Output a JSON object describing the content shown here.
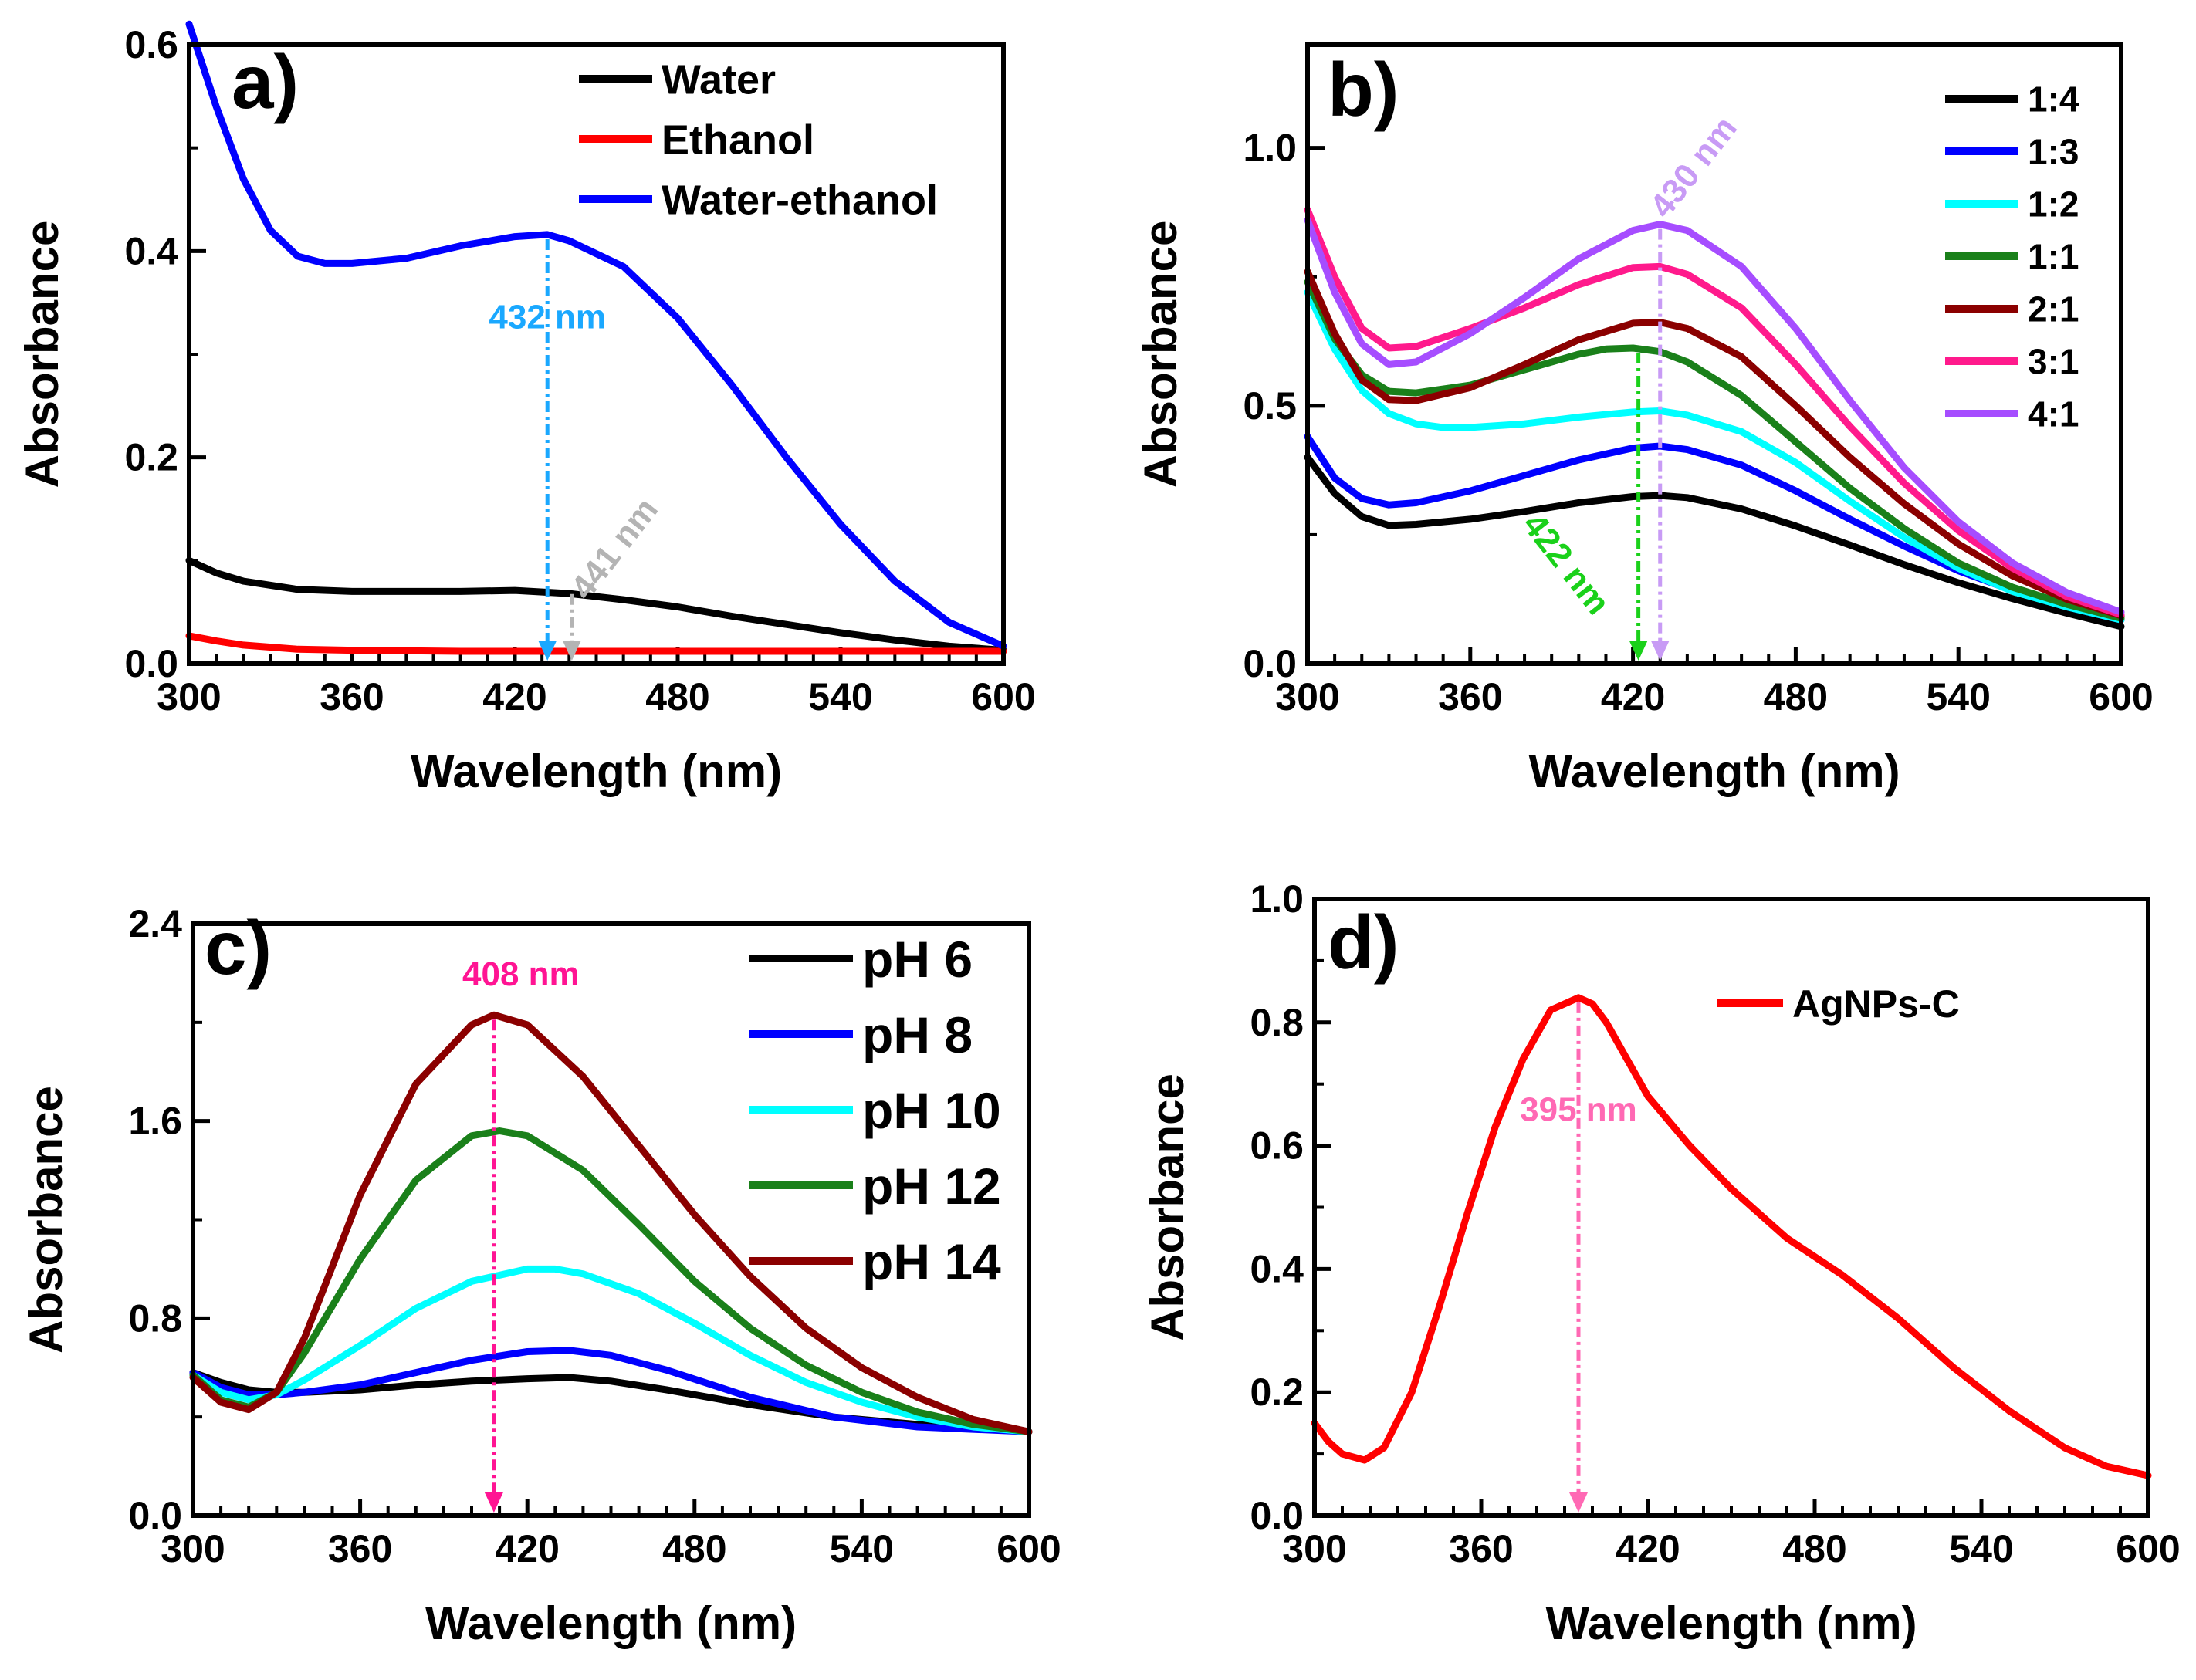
{
  "chart_data": [
    {
      "type": "line",
      "panel_label": "a)",
      "xlabel": "Wavelength (nm)",
      "ylabel": "Absorbance",
      "xlim": [
        300,
        600
      ],
      "ylim": [
        0,
        0.6
      ],
      "xticks": [
        "300",
        "360",
        "420",
        "480",
        "540",
        "600"
      ],
      "yticks": [
        "0.0",
        "0.2",
        "0.4",
        "0.6"
      ],
      "ytick_values": [
        0,
        0.2,
        0.4,
        0.6
      ],
      "legend_position": "top-right",
      "series": [
        {
          "name": "Water",
          "color": "#000000",
          "x": [
            300,
            310,
            320,
            340,
            360,
            380,
            400,
            420,
            440,
            460,
            480,
            500,
            520,
            540,
            560,
            580,
            600
          ],
          "values": [
            0.1,
            0.088,
            0.08,
            0.072,
            0.07,
            0.07,
            0.07,
            0.071,
            0.068,
            0.062,
            0.055,
            0.046,
            0.038,
            0.03,
            0.023,
            0.017,
            0.013
          ]
        },
        {
          "name": "Ethanol",
          "color": "#ff0000",
          "x": [
            300,
            310,
            320,
            340,
            360,
            400,
            440,
            480,
            520,
            560,
            600
          ],
          "values": [
            0.027,
            0.022,
            0.018,
            0.014,
            0.013,
            0.012,
            0.012,
            0.012,
            0.012,
            0.012,
            0.012
          ]
        },
        {
          "name": "Water-ethanol",
          "color": "#0000ff",
          "x": [
            300,
            305,
            310,
            320,
            330,
            340,
            350,
            360,
            380,
            400,
            420,
            432,
            440,
            460,
            480,
            500,
            520,
            540,
            560,
            580,
            600
          ],
          "values": [
            0.62,
            0.58,
            0.54,
            0.47,
            0.42,
            0.395,
            0.388,
            0.388,
            0.393,
            0.405,
            0.414,
            0.416,
            0.41,
            0.385,
            0.335,
            0.27,
            0.2,
            0.135,
            0.08,
            0.04,
            0.017
          ]
        }
      ],
      "annotations": [
        {
          "text": "432 nm",
          "x": 432,
          "y_from": 0.416,
          "color": "#1aa8ff",
          "rotated": false
        },
        {
          "text": "441 nm",
          "x": 441,
          "y_from": 0.072,
          "color": "#b4b4b4",
          "rotated": true
        }
      ]
    },
    {
      "type": "line",
      "panel_label": "b)",
      "xlabel": "Wavelength (nm)",
      "ylabel": "Absorbance",
      "xlim": [
        300,
        600
      ],
      "ylim": [
        0,
        1.2
      ],
      "xticks": [
        "300",
        "360",
        "420",
        "480",
        "540",
        "600"
      ],
      "yticks": [
        "0.0",
        "0.5",
        "1.0"
      ],
      "ytick_values": [
        0,
        0.5,
        1.0
      ],
      "legend_position": "top-right",
      "series": [
        {
          "name": "1:4",
          "color": "#000000",
          "x": [
            300,
            310,
            320,
            330,
            340,
            360,
            380,
            400,
            420,
            430,
            440,
            460,
            480,
            500,
            520,
            540,
            560,
            580,
            600
          ],
          "values": [
            0.4,
            0.33,
            0.285,
            0.268,
            0.27,
            0.28,
            0.295,
            0.312,
            0.324,
            0.326,
            0.322,
            0.3,
            0.267,
            0.23,
            0.192,
            0.157,
            0.126,
            0.098,
            0.072
          ]
        },
        {
          "name": "1:3",
          "color": "#0000ff",
          "x": [
            300,
            310,
            320,
            330,
            340,
            360,
            380,
            400,
            420,
            430,
            440,
            460,
            480,
            500,
            520,
            540,
            560,
            580,
            600
          ],
          "values": [
            0.44,
            0.36,
            0.32,
            0.308,
            0.312,
            0.335,
            0.365,
            0.395,
            0.418,
            0.422,
            0.415,
            0.385,
            0.335,
            0.28,
            0.228,
            0.18,
            0.142,
            0.11,
            0.085
          ]
        },
        {
          "name": "1:2",
          "color": "#00ffff",
          "x": [
            300,
            310,
            320,
            330,
            340,
            350,
            360,
            380,
            400,
            420,
            430,
            440,
            460,
            480,
            500,
            520,
            540,
            560,
            580,
            600
          ],
          "values": [
            0.72,
            0.61,
            0.53,
            0.485,
            0.465,
            0.458,
            0.458,
            0.465,
            0.478,
            0.488,
            0.49,
            0.482,
            0.45,
            0.39,
            0.315,
            0.245,
            0.185,
            0.14,
            0.11,
            0.085
          ]
        },
        {
          "name": "1:1",
          "color": "#1a801a",
          "x": [
            300,
            310,
            320,
            330,
            340,
            360,
            380,
            400,
            410,
            420,
            430,
            440,
            460,
            480,
            500,
            520,
            540,
            560,
            580,
            600
          ],
          "values": [
            0.74,
            0.63,
            0.56,
            0.528,
            0.525,
            0.54,
            0.57,
            0.6,
            0.61,
            0.612,
            0.605,
            0.585,
            0.52,
            0.43,
            0.34,
            0.262,
            0.195,
            0.148,
            0.115,
            0.088
          ]
        },
        {
          "name": "2:1",
          "color": "#8b0000",
          "x": [
            300,
            310,
            320,
            330,
            340,
            360,
            380,
            400,
            420,
            430,
            440,
            460,
            480,
            500,
            520,
            540,
            560,
            580,
            600
          ],
          "values": [
            0.76,
            0.64,
            0.55,
            0.512,
            0.51,
            0.535,
            0.58,
            0.628,
            0.66,
            0.662,
            0.65,
            0.595,
            0.5,
            0.4,
            0.31,
            0.232,
            0.17,
            0.125,
            0.093
          ]
        },
        {
          "name": "3:1",
          "color": "#ff1a8c",
          "x": [
            300,
            310,
            320,
            330,
            340,
            360,
            380,
            400,
            420,
            430,
            440,
            460,
            480,
            500,
            520,
            540,
            560,
            580,
            600
          ],
          "values": [
            0.88,
            0.75,
            0.65,
            0.612,
            0.615,
            0.65,
            0.69,
            0.735,
            0.768,
            0.77,
            0.755,
            0.69,
            0.58,
            0.46,
            0.35,
            0.258,
            0.185,
            0.13,
            0.095
          ]
        },
        {
          "name": "4:1",
          "color": "#a64dff",
          "x": [
            300,
            310,
            320,
            330,
            340,
            360,
            380,
            400,
            420,
            430,
            440,
            460,
            480,
            500,
            520,
            540,
            560,
            580,
            600
          ],
          "values": [
            0.86,
            0.72,
            0.62,
            0.58,
            0.585,
            0.64,
            0.71,
            0.785,
            0.84,
            0.852,
            0.84,
            0.77,
            0.65,
            0.51,
            0.38,
            0.275,
            0.195,
            0.138,
            0.1
          ]
        }
      ],
      "annotations": [
        {
          "text": "422 nm",
          "x": 422,
          "y_from": 0.612,
          "color": "#1ad11a",
          "rotated": true
        },
        {
          "text": "430 nm",
          "x": 430,
          "y_from": 0.852,
          "color": "#c89bf5",
          "rotated": true
        }
      ]
    },
    {
      "type": "line",
      "panel_label": "c)",
      "xlabel": "Wavelength (nm)",
      "ylabel": "Absorbance",
      "xlim": [
        300,
        600
      ],
      "ylim": [
        0,
        2.4
      ],
      "xticks": [
        "300",
        "360",
        "420",
        "480",
        "540",
        "600"
      ],
      "yticks": [
        "0.0",
        "0.8",
        "1.6",
        "2.4"
      ],
      "ytick_values": [
        0,
        0.8,
        1.6,
        2.4
      ],
      "legend_position": "top-right",
      "series": [
        {
          "name": "pH 6",
          "color": "#000000",
          "x": [
            300,
            310,
            320,
            330,
            340,
            360,
            380,
            400,
            420,
            435,
            450,
            470,
            500,
            530,
            560,
            600
          ],
          "values": [
            0.58,
            0.54,
            0.51,
            0.5,
            0.5,
            0.51,
            0.53,
            0.545,
            0.555,
            0.56,
            0.545,
            0.51,
            0.45,
            0.4,
            0.37,
            0.34
          ]
        },
        {
          "name": "pH 8",
          "color": "#0000ff",
          "x": [
            300,
            310,
            320,
            330,
            340,
            360,
            380,
            400,
            420,
            435,
            450,
            470,
            500,
            530,
            560,
            600
          ],
          "values": [
            0.58,
            0.52,
            0.49,
            0.49,
            0.5,
            0.53,
            0.58,
            0.63,
            0.665,
            0.67,
            0.65,
            0.59,
            0.48,
            0.4,
            0.36,
            0.34
          ]
        },
        {
          "name": "pH 10",
          "color": "#00ffff",
          "x": [
            300,
            310,
            320,
            330,
            340,
            360,
            380,
            400,
            420,
            430,
            440,
            460,
            480,
            500,
            520,
            540,
            560,
            580,
            600
          ],
          "values": [
            0.57,
            0.5,
            0.47,
            0.49,
            0.55,
            0.69,
            0.84,
            0.95,
            1.0,
            1.0,
            0.98,
            0.9,
            0.78,
            0.65,
            0.54,
            0.46,
            0.4,
            0.36,
            0.34
          ]
        },
        {
          "name": "pH 12",
          "color": "#1a801a",
          "x": [
            300,
            310,
            320,
            330,
            340,
            360,
            380,
            400,
            410,
            420,
            440,
            460,
            480,
            500,
            520,
            540,
            560,
            580,
            600
          ],
          "values": [
            0.57,
            0.47,
            0.44,
            0.5,
            0.66,
            1.04,
            1.36,
            1.54,
            1.56,
            1.54,
            1.4,
            1.18,
            0.95,
            0.76,
            0.61,
            0.5,
            0.42,
            0.37,
            0.34
          ]
        },
        {
          "name": "pH 14",
          "color": "#8b0000",
          "x": [
            300,
            310,
            320,
            330,
            340,
            360,
            380,
            400,
            408,
            420,
            440,
            460,
            480,
            500,
            520,
            540,
            560,
            580,
            600
          ],
          "values": [
            0.56,
            0.46,
            0.43,
            0.5,
            0.72,
            1.3,
            1.75,
            1.99,
            2.03,
            1.99,
            1.78,
            1.5,
            1.22,
            0.97,
            0.76,
            0.6,
            0.48,
            0.39,
            0.34
          ]
        }
      ],
      "annotations": [
        {
          "text": "408 nm",
          "x": 408,
          "y_from": 2.03,
          "color": "#ff1493",
          "rotated": false
        }
      ]
    },
    {
      "type": "line",
      "panel_label": "d)",
      "xlabel": "Wavelength (nm)",
      "ylabel": "Absorbance",
      "xlim": [
        300,
        600
      ],
      "ylim": [
        0,
        1.0
      ],
      "xticks": [
        "300",
        "360",
        "420",
        "480",
        "540",
        "600"
      ],
      "yticks": [
        "0.0",
        "0.2",
        "0.4",
        "0.6",
        "0.8",
        "1.0"
      ],
      "ytick_values": [
        0,
        0.2,
        0.4,
        0.6,
        0.8,
        1.0
      ],
      "legend_position": "top-right",
      "series": [
        {
          "name": "AgNPs-C",
          "color": "#ff0000",
          "x": [
            300,
            305,
            310,
            318,
            325,
            335,
            345,
            355,
            365,
            375,
            385,
            395,
            400,
            405,
            410,
            420,
            435,
            450,
            470,
            490,
            510,
            530,
            550,
            570,
            585,
            600
          ],
          "values": [
            0.15,
            0.12,
            0.1,
            0.09,
            0.11,
            0.2,
            0.34,
            0.49,
            0.63,
            0.74,
            0.82,
            0.84,
            0.83,
            0.8,
            0.76,
            0.68,
            0.6,
            0.53,
            0.45,
            0.39,
            0.32,
            0.24,
            0.17,
            0.11,
            0.08,
            0.065
          ]
        }
      ],
      "annotations": [
        {
          "text": "395 nm",
          "x": 395,
          "y_from": 0.84,
          "color": "#ff69b4",
          "rotated": false
        }
      ]
    }
  ]
}
